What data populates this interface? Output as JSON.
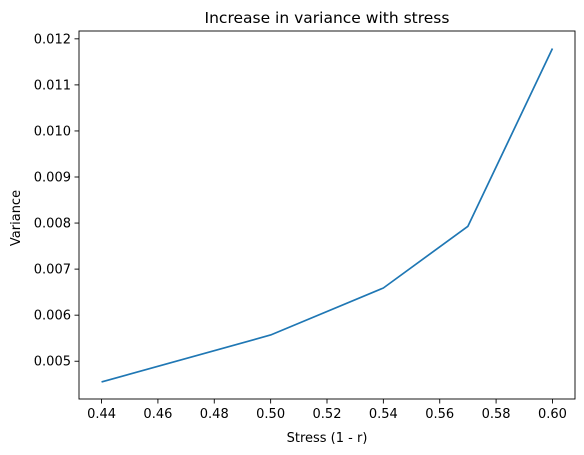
{
  "chart_data": {
    "type": "line",
    "title": "Increase in variance with stress",
    "xlabel": "Stress (1 - r)",
    "ylabel": "Variance",
    "xlim": [
      0.432,
      0.608
    ],
    "ylim": [
      0.00418,
      0.01217
    ],
    "xticks": [
      "0.44",
      "0.46",
      "0.48",
      "0.50",
      "0.52",
      "0.54",
      "0.56",
      "0.58",
      "0.60"
    ],
    "yticks": [
      "0.005",
      "0.006",
      "0.007",
      "0.008",
      "0.009",
      "0.010",
      "0.011",
      "0.012"
    ],
    "grid": false,
    "series": [
      {
        "color": "#1f77b4",
        "x": [
          0.44,
          0.5,
          0.54,
          0.57,
          0.6
        ],
        "y": [
          0.00455,
          0.00557,
          0.00659,
          0.00793,
          0.01179
        ]
      }
    ]
  }
}
